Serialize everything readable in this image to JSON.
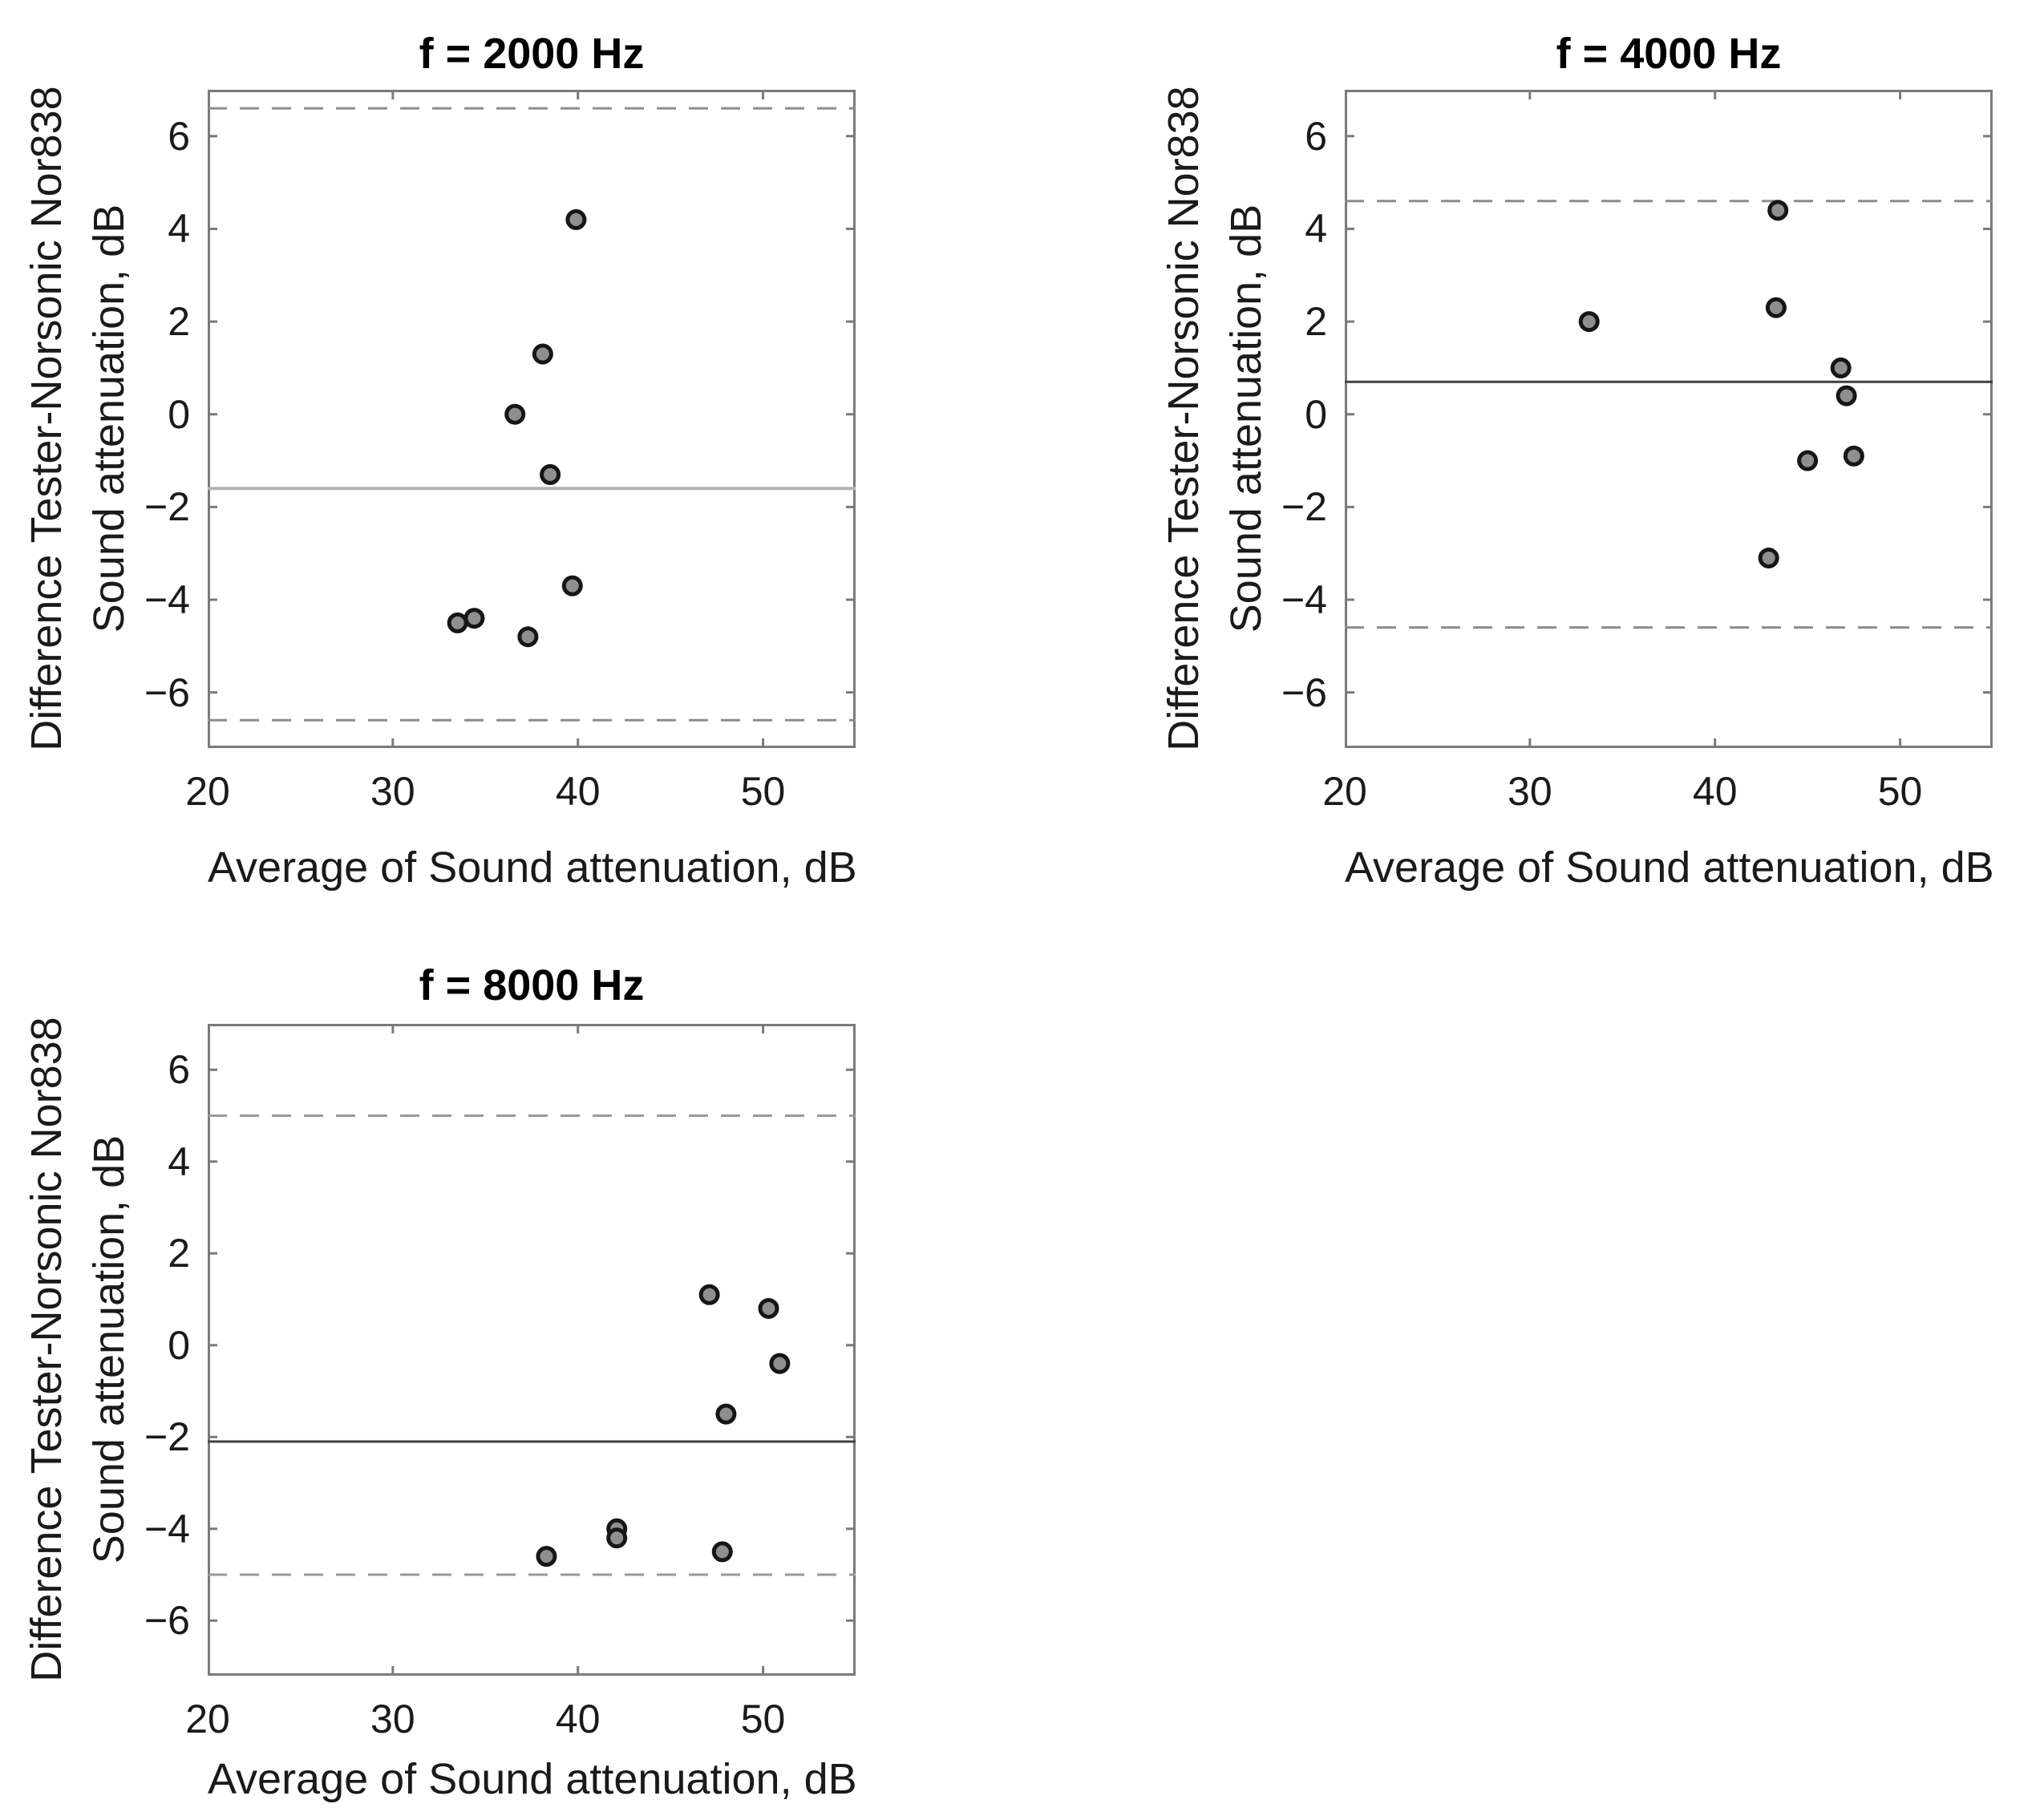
{
  "figure": {
    "background": "#ffffff",
    "text_color": "#1a1a1a",
    "axis_color": "#7a7a7a"
  },
  "chart_data": [
    {
      "type": "scatter",
      "title": "f = 2000 Hz",
      "xlabel": "Average of Sound attenuation, dB",
      "ylabel_line1": "Difference Tester-Norsonic Nor838",
      "ylabel_line2": "Sound attenuation, dB",
      "xlim": [
        20,
        55
      ],
      "ylim": [
        -7.2,
        7.0
      ],
      "xticks": [
        20,
        30,
        40,
        50
      ],
      "yticks": [
        6,
        4,
        2,
        0,
        -2,
        -4,
        -6
      ],
      "grid": false,
      "legend": null,
      "mean_line": -1.6,
      "upper_dashed": 6.6,
      "lower_dashed": -6.6,
      "points": [
        [
          39.9,
          4.2
        ],
        [
          38.1,
          1.3
        ],
        [
          36.6,
          0.0
        ],
        [
          38.5,
          -1.3
        ],
        [
          39.7,
          -3.7
        ],
        [
          33.5,
          -4.5
        ],
        [
          34.4,
          -4.4
        ],
        [
          37.3,
          -4.8
        ]
      ],
      "style": {
        "axis_color": "#7a7a7a",
        "dashed_color": "#8c8c8c",
        "mean_color": "#b3b3b3",
        "mean_width": 4,
        "marker_fill": "#8f8f8f",
        "marker_stroke": "#161616"
      }
    },
    {
      "type": "scatter",
      "title": "f = 4000 Hz",
      "xlabel": "Average of Sound attenuation, dB",
      "ylabel_line1": "Difference Tester-Norsonic Nor838",
      "ylabel_line2": "Sound attenuation, dB",
      "xlim": [
        20,
        55
      ],
      "ylim": [
        -7.2,
        7.0
      ],
      "xticks": [
        20,
        30,
        40,
        50
      ],
      "yticks": [
        6,
        4,
        2,
        0,
        -2,
        -4,
        -6
      ],
      "grid": false,
      "legend": null,
      "mean_line": 0.7,
      "upper_dashed": 4.6,
      "lower_dashed": -4.6,
      "points": [
        [
          43.4,
          4.4
        ],
        [
          33.2,
          2.0
        ],
        [
          43.3,
          2.3
        ],
        [
          46.8,
          1.0
        ],
        [
          47.1,
          0.4
        ],
        [
          45.0,
          -1.0
        ],
        [
          47.5,
          -0.9
        ],
        [
          42.9,
          -3.1
        ]
      ],
      "style": {
        "axis_color": "#7a7a7a",
        "dashed_color": "#8c8c8c",
        "mean_color": "#404040",
        "mean_width": 3,
        "marker_fill": "#8f8f8f",
        "marker_stroke": "#161616"
      }
    },
    {
      "type": "scatter",
      "title": "f = 8000 Hz",
      "xlabel": "Average of Sound attenuation, dB",
      "ylabel_line1": "Difference Tester-Norsonic Nor838",
      "ylabel_line2": "Sound attenuation, dB",
      "xlim": [
        20,
        55
      ],
      "ylim": [
        -7.2,
        7.0
      ],
      "xticks": [
        20,
        30,
        40,
        50
      ],
      "yticks": [
        6,
        4,
        2,
        0,
        -2,
        -4,
        -6
      ],
      "grid": false,
      "legend": null,
      "mean_line": -2.1,
      "upper_dashed": 5.0,
      "lower_dashed": -5.0,
      "points": [
        [
          47.1,
          1.1
        ],
        [
          50.3,
          0.8
        ],
        [
          50.9,
          -0.4
        ],
        [
          48.0,
          -1.5
        ],
        [
          42.1,
          -4.0
        ],
        [
          42.1,
          -4.2
        ],
        [
          38.3,
          -4.6
        ],
        [
          47.8,
          -4.5
        ]
      ],
      "style": {
        "axis_color": "#7a7a7a",
        "dashed_color": "#999999",
        "mean_color": "#404040",
        "mean_width": 3,
        "marker_fill": "#8f8f8f",
        "marker_stroke": "#161616"
      }
    }
  ]
}
